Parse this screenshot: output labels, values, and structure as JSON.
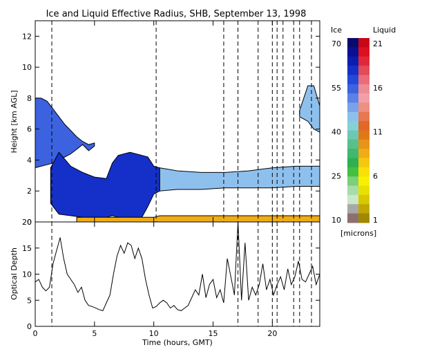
{
  "chart_data": [
    {
      "type": "heatmap",
      "title": "Ice and Liquid Effective Radius, SHB, September 13, 1998",
      "ylabel": "Height [km AGL]",
      "xlim": [
        0,
        24
      ],
      "ylim": [
        0,
        13
      ],
      "xticks": [
        0,
        5,
        10,
        15,
        20
      ],
      "yticks": [
        0,
        2,
        4,
        6,
        8,
        10,
        12
      ],
      "layers": [
        {
          "name": "upper ice cloud",
          "phase": "ice",
          "x": [
            0.0,
            0.5,
            1.0,
            1.5,
            2.0,
            2.5,
            3.0,
            3.5,
            4.0,
            4.5,
            5.0
          ],
          "top": [
            8.0,
            8.0,
            7.8,
            7.3,
            6.8,
            6.3,
            5.9,
            5.5,
            5.2,
            5.0,
            5.1
          ],
          "bottom": [
            3.5,
            3.6,
            3.7,
            3.8,
            4.0,
            4.2,
            4.4,
            4.7,
            5.0,
            4.6,
            4.9
          ],
          "radius_um": 55
        },
        {
          "name": "lower ice cloud",
          "phase": "ice",
          "x": [
            1.3,
            2.0,
            3.0,
            4.0,
            5.0,
            6.0,
            6.5,
            7.0,
            8.0,
            9.0,
            9.5,
            10.0,
            10.5
          ],
          "top": [
            3.5,
            4.5,
            3.6,
            3.2,
            2.9,
            2.8,
            3.8,
            4.3,
            4.5,
            4.3,
            4.2,
            3.6,
            3.5
          ],
          "bottom": [
            1.2,
            0.5,
            0.4,
            0.3,
            0.3,
            0.3,
            0.4,
            0.3,
            0.3,
            0.3,
            1.0,
            1.8,
            2.0
          ],
          "radius_um": 60
        },
        {
          "name": "mid-level ice layer",
          "phase": "ice",
          "x": [
            10.5,
            12.0,
            14.0,
            16.0,
            18.0,
            20.0,
            22.0,
            24.0
          ],
          "top": [
            3.5,
            3.3,
            3.2,
            3.2,
            3.3,
            3.5,
            3.6,
            3.6
          ],
          "bottom": [
            2.0,
            2.1,
            2.1,
            2.2,
            2.2,
            2.2,
            2.3,
            2.3
          ],
          "radius_um": 45
        },
        {
          "name": "high ice cloud",
          "phase": "ice",
          "x": [
            22.3,
            23.0,
            23.5,
            24.0
          ],
          "top": [
            7.2,
            8.8,
            8.8,
            7.5
          ],
          "bottom": [
            6.8,
            6.5,
            6.0,
            5.8
          ],
          "radius_um": 45
        },
        {
          "name": "low liquid cloud",
          "phase": "liquid",
          "x": [
            3.5,
            10.0,
            10.5,
            24.0
          ],
          "top": [
            0.3,
            0.3,
            0.4,
            0.4
          ],
          "bottom": [
            0.0,
            0.0,
            0.0,
            0.0
          ],
          "radius_um": 8
        }
      ],
      "dashed_lines_x": [
        1.4,
        10.2,
        15.9,
        17.1,
        18.8,
        20.0,
        20.4,
        20.9,
        21.8,
        22.3,
        23.3
      ]
    },
    {
      "type": "line",
      "xlabel": "Time (hours, GMT)",
      "ylabel": "Optical Depth",
      "xlim": [
        0,
        24
      ],
      "ylim": [
        0,
        20
      ],
      "xticks": [
        0,
        5,
        10,
        15,
        20
      ],
      "yticks": [
        0,
        5,
        10,
        15,
        20
      ],
      "series": [
        {
          "x": [
            0.0,
            0.3,
            0.6,
            0.9,
            1.2,
            1.5,
            1.8,
            2.1,
            2.4,
            2.7,
            3.0,
            3.3,
            3.6,
            3.9,
            4.2,
            4.5,
            4.8,
            5.1,
            5.4,
            5.7,
            6.0,
            6.3,
            6.6,
            6.9,
            7.2,
            7.5,
            7.8,
            8.1,
            8.4,
            8.7,
            9.0,
            9.3,
            9.6,
            9.9,
            10.2,
            10.5,
            10.8,
            11.1,
            11.4,
            11.7,
            12.0,
            12.3,
            12.6,
            12.9,
            13.2,
            13.5,
            13.8,
            14.1,
            14.4,
            14.7,
            15.0,
            15.3,
            15.6,
            15.9,
            16.2,
            16.5,
            16.8,
            17.1,
            17.4,
            17.7,
            18.0,
            18.3,
            18.6,
            18.9,
            19.2,
            19.5,
            19.8,
            20.1,
            20.4,
            20.7,
            21.0,
            21.3,
            21.6,
            21.9,
            22.2,
            22.5,
            22.8,
            23.1,
            23.4,
            23.7,
            24.0
          ],
          "y": [
            8.5,
            9.0,
            7.5,
            6.8,
            7.5,
            12.0,
            14.5,
            17.0,
            13.0,
            10.0,
            9.0,
            8.0,
            6.5,
            7.5,
            5.0,
            4.0,
            3.8,
            3.5,
            3.2,
            3.0,
            4.5,
            6.0,
            10.0,
            13.5,
            15.5,
            14.0,
            16.0,
            15.5,
            13.0,
            15.0,
            13.0,
            9.0,
            6.0,
            3.5,
            3.8,
            4.5,
            5.0,
            4.5,
            3.5,
            4.0,
            3.2,
            3.0,
            3.5,
            4.0,
            5.5,
            7.0,
            6.0,
            10.0,
            5.5,
            8.0,
            9.0,
            5.5,
            7.0,
            4.5,
            13.0,
            9.5,
            6.0,
            20.0,
            5.0,
            16.0,
            5.0,
            7.5,
            6.0,
            8.0,
            12.0,
            7.0,
            9.0,
            6.0,
            8.0,
            9.5,
            7.0,
            11.0,
            8.0,
            9.5,
            12.5,
            9.0,
            8.5,
            10.0,
            11.5,
            8.0,
            10.0
          ]
        }
      ],
      "dashed_lines_x": [
        1.4,
        17.1,
        18.8,
        20.0,
        20.4,
        21.8,
        22.3,
        23.3
      ]
    }
  ],
  "colorbar": {
    "ice_label": "Ice",
    "liquid_label": "Liquid",
    "unit_label": "[microns]",
    "ice_ticks": [
      70,
      55,
      40,
      25,
      10
    ],
    "liquid_ticks": [
      21,
      16,
      11,
      6,
      1
    ],
    "ice_colors": [
      "#0a0a6e",
      "#0a1090",
      "#0b1db0",
      "#1530c8",
      "#2448d8",
      "#3c62e0",
      "#5a82e6",
      "#78a2ea",
      "#8ec0ee",
      "#84d2d8",
      "#6cc8b4",
      "#58c08c",
      "#40b870",
      "#2cb050",
      "#44c040",
      "#7cd078",
      "#a8dca8",
      "#c8e8c8",
      "#a8a8a8",
      "#8c7070"
    ],
    "liquid_colors": [
      "#c80818",
      "#dc1020",
      "#e02838",
      "#e44a58",
      "#ea6c78",
      "#ee8c96",
      "#f2a0a8",
      "#ee9080",
      "#e87850",
      "#e06828",
      "#e07818",
      "#e89418",
      "#f0ac14",
      "#f4c810",
      "#f8e008",
      "#f8f000",
      "#e8e000",
      "#d8c800",
      "#c0a800",
      "#a08800"
    ]
  }
}
